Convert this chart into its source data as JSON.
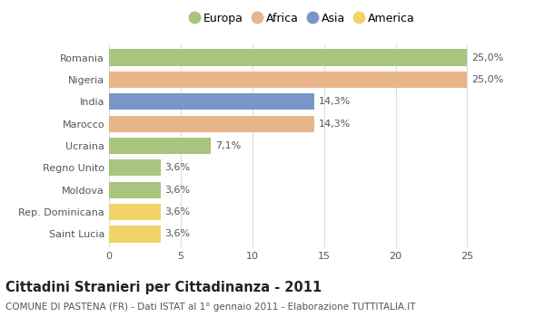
{
  "categories": [
    "Romania",
    "Nigeria",
    "India",
    "Marocco",
    "Ucraina",
    "Regno Unito",
    "Moldova",
    "Rep. Dominicana",
    "Saint Lucia"
  ],
  "values": [
    25.0,
    25.0,
    14.3,
    14.3,
    7.1,
    3.6,
    3.6,
    3.6,
    3.6
  ],
  "labels": [
    "25,0%",
    "25,0%",
    "14,3%",
    "14,3%",
    "7,1%",
    "3,6%",
    "3,6%",
    "3,6%",
    "3,6%"
  ],
  "continents": [
    "Europa",
    "Africa",
    "Asia",
    "Africa",
    "Europa",
    "Europa",
    "Europa",
    "America",
    "America"
  ],
  "colors": {
    "Europa": "#a8c47e",
    "Africa": "#e8b48a",
    "Asia": "#7a96c8",
    "America": "#f0d468"
  },
  "legend_order": [
    "Europa",
    "Africa",
    "Asia",
    "America"
  ],
  "title": "Cittadini Stranieri per Cittadinanza - 2011",
  "subtitle": "COMUNE DI PASTENA (FR) - Dati ISTAT al 1° gennaio 2011 - Elaborazione TUTTITALIA.IT",
  "xlim": [
    0,
    27
  ],
  "xticks": [
    0,
    5,
    10,
    15,
    20,
    25
  ],
  "bg_color": "#ffffff",
  "bar_height": 0.75,
  "label_fontsize": 8,
  "title_fontsize": 10.5,
  "subtitle_fontsize": 7.5,
  "ytick_fontsize": 8,
  "xtick_fontsize": 8,
  "legend_fontsize": 9
}
